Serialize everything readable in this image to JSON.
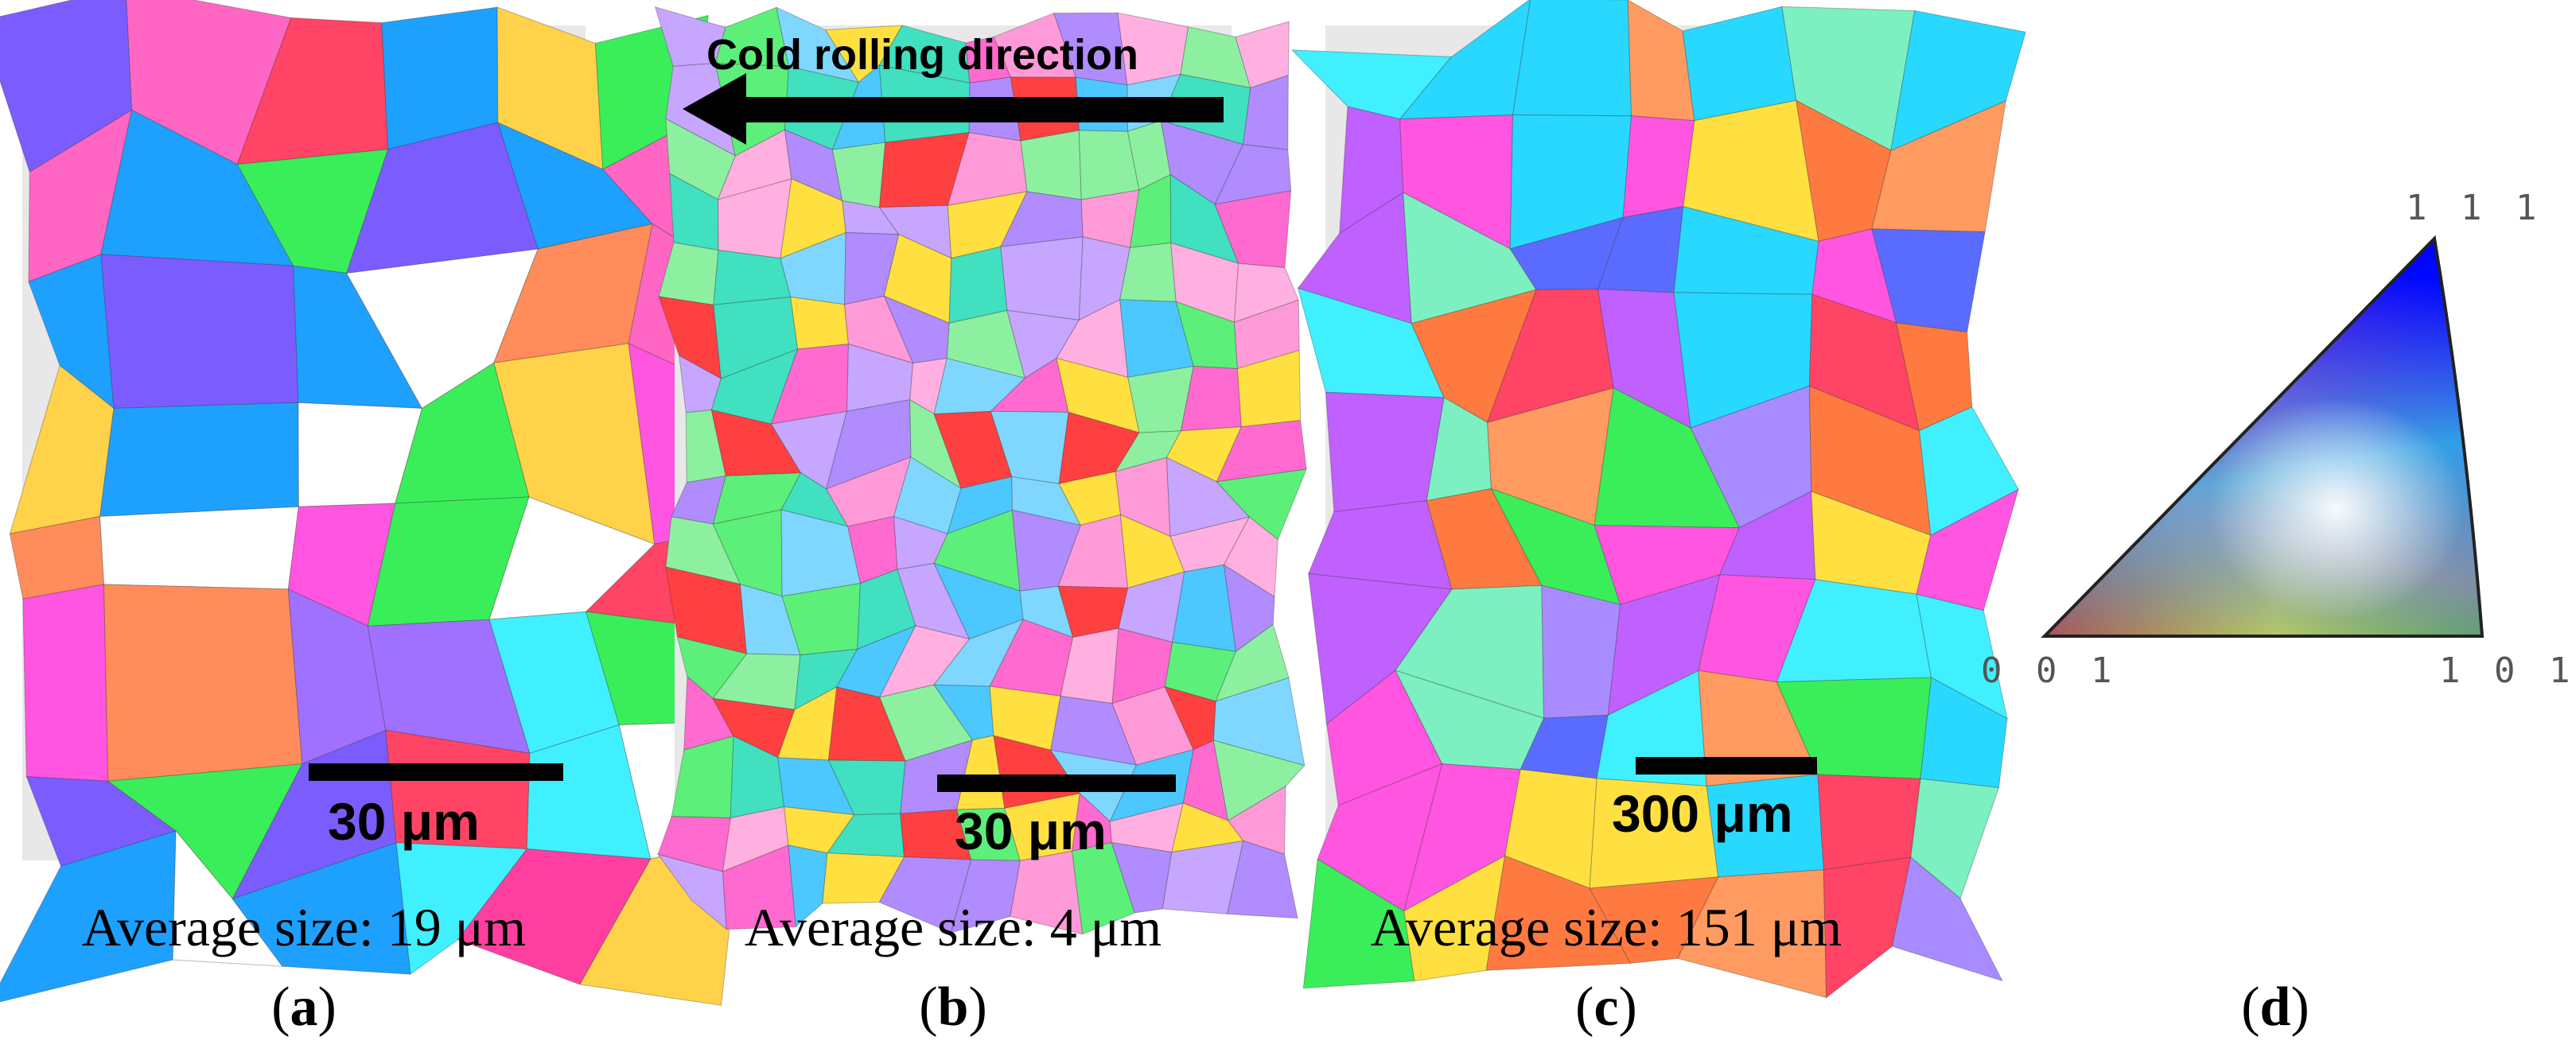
{
  "panels": [
    {
      "id": "a",
      "scale_label": "30 μm",
      "caption": "Average size: 19 μm",
      "letter": "a",
      "palette": [
        "#ff3fa0",
        "#ff8c5a",
        "#3aee5a",
        "#7b5cff",
        "#ff55e0",
        "#1ea0ff",
        "#ffffff",
        "#ff66c4",
        "#40f0ff",
        "#ffd24a",
        "#a070ff",
        "#ff4466"
      ]
    },
    {
      "id": "b",
      "scale_label": "30 μm",
      "caption": "Average size: 4 μm",
      "letter": "b",
      "arrow_label": "Cold rolling direction",
      "palette": [
        "#ff9ad8",
        "#5cf07a",
        "#7fd7ff",
        "#b08cff",
        "#ffe040",
        "#ff4040",
        "#4cc8ff",
        "#ffb0e0",
        "#8cf0a0",
        "#c6a6ff",
        "#ff6ad0",
        "#40e0c0"
      ]
    },
    {
      "id": "c",
      "scale_label": "300 μm",
      "caption": "Average size: 151 μm",
      "letter": "c",
      "palette": [
        "#3aee5a",
        "#ff55e0",
        "#5a6cff",
        "#ff7a40",
        "#40f0ff",
        "#c060ff",
        "#ff4466",
        "#ffe040",
        "#7cf0c0",
        "#a88cff",
        "#ff9a60",
        "#28d8ff"
      ]
    }
  ],
  "ipf": {
    "labels": {
      "top": "1 1 1",
      "left": "0 0 1",
      "right": "1 0 1"
    },
    "letter": "d"
  }
}
